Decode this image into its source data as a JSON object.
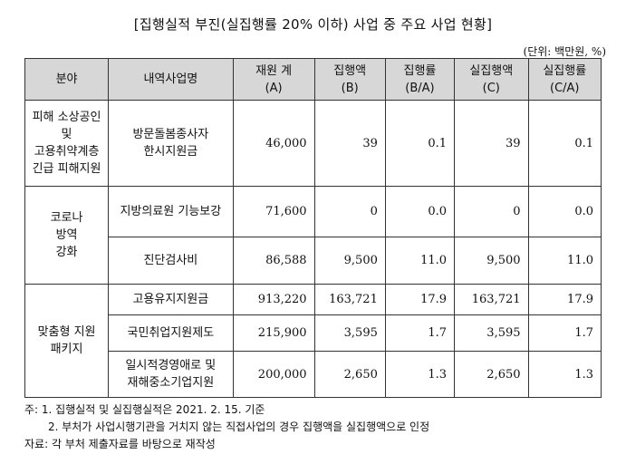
{
  "title": "[집행실적 부진(실집행률 20% 이하) 사업 중 주요 사업 현황]",
  "unit": "(단위: 백만원, %)",
  "headers": {
    "category": "분야",
    "project": "내역사업명",
    "budget": [
      "재원 계",
      "(A)"
    ],
    "exec": [
      "집행액",
      "(B)"
    ],
    "exec_rate": [
      "집행률",
      "(B/A)"
    ],
    "actual": [
      "실집행액",
      "(C)"
    ],
    "actual_rate": [
      "실집행률",
      "(C/A)"
    ]
  },
  "groups": [
    {
      "category": [
        "피해 소상공인",
        "및",
        "고용취약계층",
        "긴급 피해지원"
      ],
      "rows": [
        {
          "name": [
            "방문돌봄종사자",
            "한시지원금"
          ],
          "budget": "46,000",
          "exec": "39",
          "exec_rate": "0.1",
          "actual": "39",
          "actual_rate": "0.1"
        }
      ]
    },
    {
      "category": [
        "코로나",
        "방역",
        "강화"
      ],
      "rows": [
        {
          "name": [
            "지방의료원 기능보강"
          ],
          "budget": "71,600",
          "exec": "0",
          "exec_rate": "0.0",
          "actual": "0",
          "actual_rate": "0.0"
        },
        {
          "name": [
            "진단검사비"
          ],
          "budget": "86,588",
          "exec": "9,500",
          "exec_rate": "11.0",
          "actual": "9,500",
          "actual_rate": "11.0"
        }
      ]
    },
    {
      "category": [
        "맞춤형 지원",
        "패키지"
      ],
      "rows": [
        {
          "name": [
            "고용유지지원금"
          ],
          "budget": "913,220",
          "exec": "163,721",
          "exec_rate": "17.9",
          "actual": "163,721",
          "actual_rate": "17.9"
        },
        {
          "name": [
            "국민취업지원제도"
          ],
          "budget": "215,900",
          "exec": "3,595",
          "exec_rate": "1.7",
          "actual": "3,595",
          "actual_rate": "1.7"
        },
        {
          "name": [
            "일시적경영애로 및",
            "재해중소기업지원"
          ],
          "budget": "200,000",
          "exec": "2,650",
          "exec_rate": "1.3",
          "actual": "2,650",
          "actual_rate": "1.3"
        }
      ]
    }
  ],
  "notes": [
    "주: 1. 집행실적 및 실집행실적은 2021. 2. 15. 기준",
    "2. 부처가 사업시행기관을 거치지 않는 직접사업의 경우 집행액을 실집행액으로 인정",
    "자료: 각 부처 제출자료를 바탕으로 재작성"
  ]
}
